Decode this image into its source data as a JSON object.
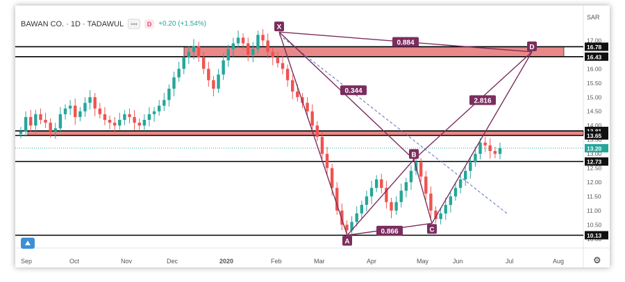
{
  "header": {
    "symbol": "BAWAN CO. · 1D · TADAWUL",
    "change": "+0.20 (+1.54%)",
    "currency": "SAR",
    "interval_badge": "D"
  },
  "colors": {
    "up": "#26a69a",
    "down": "#ef5350",
    "zone_fill": "#e57373",
    "pattern": "#7b2d5e",
    "trend_dashed": "#5c6bc0",
    "last_price_bg": "#26a69a"
  },
  "chart_data": {
    "type": "candlestick",
    "y_range": [
      9.8,
      17.5
    ],
    "y_ticks": [
      "17.00",
      "16.50",
      "16.00",
      "15.50",
      "15.00",
      "14.50",
      "14.00",
      "13.50",
      "13.00",
      "12.50",
      "12.00",
      "11.50",
      "11.00",
      "10.50",
      "10.00"
    ],
    "price_tags": [
      {
        "label": "16.78",
        "value": 16.78,
        "style": "dark"
      },
      {
        "label": "16.43",
        "value": 16.43,
        "style": "dark"
      },
      {
        "label": "13.81",
        "value": 13.81,
        "style": "dark"
      },
      {
        "label": "13.65",
        "value": 13.65,
        "style": "dark"
      },
      {
        "label": "13.20",
        "value": 13.2,
        "style": "last"
      },
      {
        "label": "12.73",
        "value": 12.73,
        "style": "dark"
      },
      {
        "label": "10.13",
        "value": 10.13,
        "style": "dark"
      }
    ],
    "x_labels": [
      "Sep",
      "Oct",
      "Nov",
      "Dec",
      "2020",
      "Feb",
      "Mar",
      "Apr",
      "May",
      "Jun",
      "Jul",
      "Aug"
    ],
    "horizontal_lines": [
      16.78,
      16.43,
      13.81,
      13.65,
      12.73,
      10.13
    ],
    "zones": [
      {
        "from_label": "Dec",
        "price_low": 16.43,
        "price_high": 16.78
      },
      {
        "from_label": "Sep",
        "price_low": 13.65,
        "price_high": 13.81
      }
    ],
    "pattern_points": [
      {
        "label": "X",
        "price": 17.3
      },
      {
        "label": "A",
        "price": 10.13
      },
      {
        "label": "B",
        "price": 12.8
      },
      {
        "label": "C",
        "price": 10.55
      },
      {
        "label": "D",
        "price": 16.6
      }
    ],
    "ratios": [
      "0.884",
      "0.344",
      "2.816",
      "0.866"
    ],
    "last_price": 13.2,
    "closes": [
      13.8,
      14.3,
      14.0,
      14.4,
      14.2,
      14.1,
      13.8,
      13.9,
      14.4,
      14.6,
      14.7,
      14.3,
      14.5,
      14.8,
      15.0,
      14.6,
      14.4,
      14.2,
      14.1,
      14.0,
      14.2,
      14.4,
      14.3,
      14.1,
      14.0,
      14.2,
      14.4,
      14.5,
      14.7,
      14.9,
      15.3,
      15.7,
      16.0,
      16.4,
      16.6,
      16.8,
      16.4,
      16.0,
      15.6,
      15.3,
      15.8,
      16.3,
      16.7,
      16.9,
      17.1,
      16.9,
      16.5,
      16.7,
      17.2,
      17.0,
      16.6,
      16.4,
      16.2,
      16.0,
      15.6,
      15.2,
      15.0,
      14.8,
      14.5,
      14.0,
      13.6,
      13.0,
      12.5,
      11.8,
      11.0,
      10.5,
      10.3,
      10.6,
      10.9,
      11.2,
      11.5,
      11.8,
      12.1,
      11.8,
      11.3,
      11.0,
      11.3,
      11.7,
      12.0,
      12.4,
      12.7,
      12.2,
      11.6,
      11.0,
      10.7,
      10.9,
      11.2,
      11.5,
      11.8,
      12.1,
      12.4,
      12.7,
      13.0,
      13.4,
      13.3,
      13.1,
      13.0,
      13.2
    ]
  }
}
